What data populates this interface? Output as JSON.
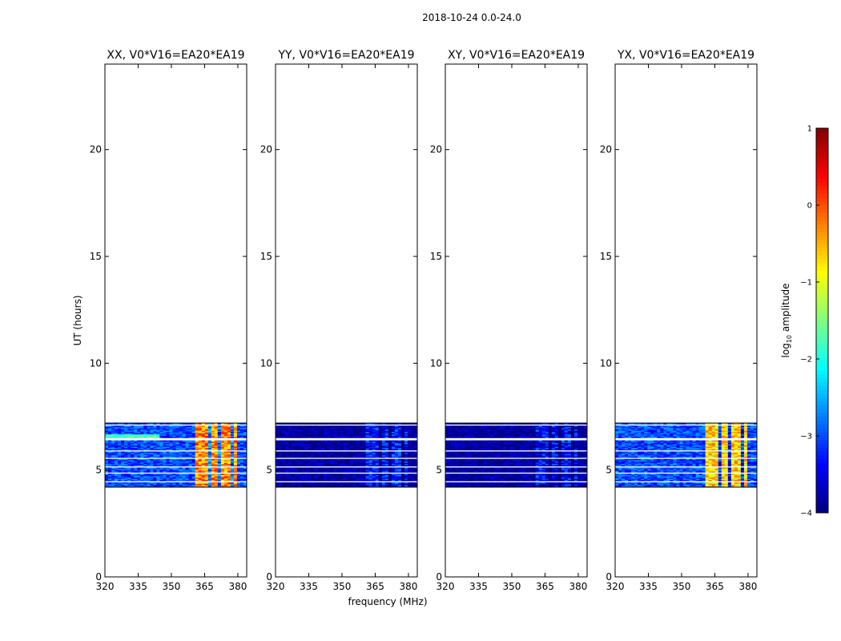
{
  "figure": {
    "suptitle": "2018-10-24 0.0-24.0",
    "xlabel": "frequency (MHz)",
    "ylabel": "UT (hours)"
  },
  "colorbar": {
    "label": "log",
    "label_sub": "10",
    "label_rest": " amplitude",
    "range": [
      -4,
      1
    ],
    "ticks": [
      "1",
      "0",
      "−1",
      "−2",
      "−3",
      "−4"
    ],
    "tick_values": [
      1,
      0,
      -1,
      -2,
      -3,
      -4
    ],
    "colormap": "jet"
  },
  "chart_data": [
    {
      "type": "heatmap",
      "title": "XX, V0*V16=EA20*EA19",
      "xlim": [
        320,
        384
      ],
      "ylim": [
        0,
        24
      ],
      "xticks": [
        "320",
        "335",
        "350",
        "365",
        "380"
      ],
      "xtick_values": [
        320,
        335,
        350,
        365,
        380
      ],
      "yticks": [
        "0",
        "5",
        "10",
        "15",
        "20"
      ],
      "ytick_values": [
        0,
        5,
        10,
        15,
        20
      ],
      "data_time_range": [
        4.2,
        7.2
      ],
      "data_extent_mhz": [
        320,
        384
      ],
      "description_levels": {
        "background_low_freq": -3,
        "rfi_band_mhz": [
          361,
          380
        ],
        "rfi_band_level": -0.3
      }
    },
    {
      "type": "heatmap",
      "title": "YY, V0*V16=EA20*EA19",
      "xlim": [
        320,
        384
      ],
      "ylim": [
        0,
        24
      ],
      "xticks": [
        "320",
        "335",
        "350",
        "365",
        "380"
      ],
      "xtick_values": [
        320,
        335,
        350,
        365,
        380
      ],
      "yticks": [
        "0",
        "5",
        "10",
        "15",
        "20"
      ],
      "ytick_values": [
        0,
        5,
        10,
        15,
        20
      ],
      "data_time_range": [
        4.2,
        7.2
      ],
      "data_extent_mhz": [
        320,
        384
      ],
      "description_levels": {
        "background_low_freq": -3.9,
        "rfi_band_mhz": [
          361,
          380
        ],
        "rfi_band_level": -3.3
      }
    },
    {
      "type": "heatmap",
      "title": "XY, V0*V16=EA20*EA19",
      "xlim": [
        320,
        384
      ],
      "ylim": [
        0,
        24
      ],
      "xticks": [
        "320",
        "335",
        "350",
        "365",
        "380"
      ],
      "xtick_values": [
        320,
        335,
        350,
        365,
        380
      ],
      "yticks": [
        "0",
        "5",
        "10",
        "15",
        "20"
      ],
      "ytick_values": [
        0,
        5,
        10,
        15,
        20
      ],
      "data_time_range": [
        4.2,
        7.2
      ],
      "data_extent_mhz": [
        320,
        384
      ],
      "description_levels": {
        "background_low_freq": -3.9,
        "rfi_band_mhz": [
          361,
          380
        ],
        "rfi_band_level": -3.4
      }
    },
    {
      "type": "heatmap",
      "title": "YX, V0*V16=EA20*EA19",
      "xlim": [
        320,
        384
      ],
      "ylim": [
        0,
        24
      ],
      "xticks": [
        "320",
        "335",
        "350",
        "365",
        "380"
      ],
      "xtick_values": [
        320,
        335,
        350,
        365,
        380
      ],
      "yticks": [
        "0",
        "5",
        "10",
        "15",
        "20"
      ],
      "ytick_values": [
        0,
        5,
        10,
        15,
        20
      ],
      "data_time_range": [
        4.2,
        7.2
      ],
      "data_extent_mhz": [
        320,
        384
      ],
      "description_levels": {
        "background_low_freq": -3,
        "rfi_band_mhz": [
          361,
          380
        ],
        "rfi_band_level": -0.7
      }
    }
  ]
}
